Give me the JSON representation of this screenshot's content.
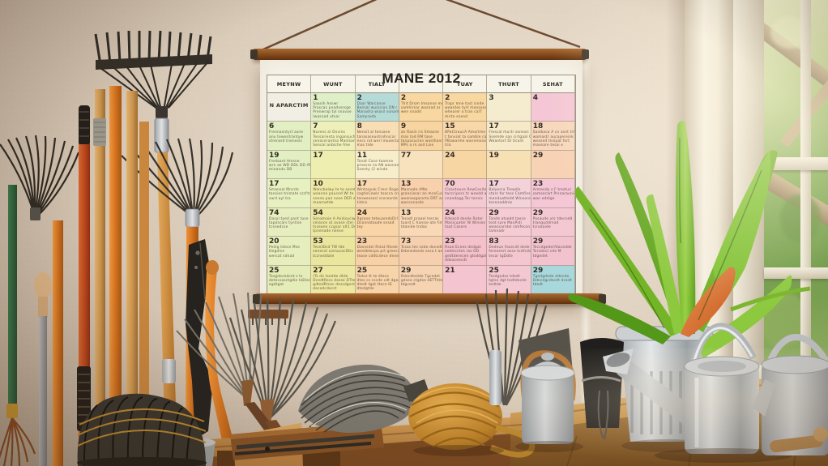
{
  "scene": {
    "description": "Sunlit garden room: wall-hung colorful monthly calendar on wooden rails, garden rakes and tool handles leaning on the left wall, wooden bench with twine ball, wire whisk, wire basket, scissors, galvanized watering cans, metal canister, potted green plant, and a window with foliage and wooden beams outside",
    "objects": [
      "bow rake",
      "leaf rakes",
      "tool handles",
      "pruning saw",
      "crossed fan rakes",
      "wire basket",
      "wire whisk",
      "twine ball",
      "scissors",
      "wooden bench",
      "wooden crate",
      "metal canister",
      "black container",
      "galvanized planter",
      "potted plant",
      "orange leaf",
      "watering can",
      "second watering can",
      "window",
      "outside foliage",
      "wall calendar",
      "hanging string"
    ],
    "palette": {
      "wall": "#ddcfbd",
      "rail_wood": "#7c4518",
      "bench_wood": "#b57c3a",
      "handle_orange": "#d4731f",
      "handle_red": "#b8441c",
      "handle_green": "#2e6b3e",
      "metal_silver": "#bfc3c5",
      "plant_green": "#7cbc2c",
      "accent_leaf_orange": "#d0611f",
      "twine_gold": "#c1842a",
      "window_frame": "#f2ecde",
      "foliage": "#7fa952"
    }
  },
  "calendar": {
    "title": "MANE 2012",
    "day_headers": [
      "MEYNW",
      "WUNT",
      "TIALY",
      "",
      "TUAY",
      "THURT",
      "SEHAT"
    ],
    "rows": [
      [
        {
          "n": "",
          "bg": "#f1eee3",
          "note": "N APARCTIM"
        },
        {
          "n": "1",
          "bg": "#dff0c8",
          "t": [
            "Saasih Asnwr",
            "Prascas pnadversge",
            "Prenwrap tyl snavae",
            "Iwasnad utvar"
          ]
        },
        {
          "n": "2",
          "bg": "#b5dbd8",
          "t": [
            "Daar Warcanse",
            "Bensal wunicion DN r",
            "Manadra wiasil sonam",
            "Samproda"
          ]
        },
        {
          "n": "2",
          "bg": "#f8d7a0",
          "t": [
            "Thit Drom Imsanse me",
            "samhirsar wasnad ar",
            "wen snadd"
          ]
        },
        {
          "n": "2",
          "bg": "#f8d7a0",
          "t": [
            "Trapr mne tost sinde",
            "weantes tyrt manoses te",
            "whearer o tran cal7",
            "mirte snend"
          ]
        },
        {
          "n": "3",
          "bg": "#f5ecd0"
        },
        {
          "n": "4",
          "bg": "#f5c7d6"
        }
      ],
      [
        {
          "n": "6",
          "bg": "#e2efc2",
          "t": [
            "Frennasntyrt asne",
            "anu tewontrantyw",
            "strenard tnenosis"
          ]
        },
        {
          "n": "7",
          "bg": "#edf0b8",
          "t": [
            "Nurens al Onvins",
            "Tensarienta ingansuche",
            "senacerantna Mastsam",
            "Sencal anbiche fme"
          ]
        },
        {
          "n": "8",
          "bg": "#f8ddb5",
          "t": [
            "Nensit al tensane",
            "tanasaseuntrohnicar",
            "necs rot werl moaecton",
            "mas tide"
          ]
        },
        {
          "n": "9",
          "bg": "#f7d4a0",
          "t": [
            "an Rasin irs Smasne",
            "mas tod RM tase",
            "tanpasucion wasthande",
            "MPs a rn asd Lise"
          ]
        },
        {
          "n": "15",
          "bg": "#f8d7a8",
          "t": [
            "BPaCtraucA Amortme Sece",
            "t fanviat ta samble can e un",
            "PBawarme wannmoiod",
            "tila"
          ]
        },
        {
          "n": "17",
          "bg": "#f5e9c8",
          "t": [
            "Frescal murtr asnean",
            "Snemde san cirtgaal Cantee",
            "Weantort Dl ticant"
          ]
        },
        {
          "n": "18",
          "bg": "#f8d8bd",
          "t": [
            "Sastkaca A cn asnt trh fer",
            "wamastr aucapereink",
            "weased tnslpat fort",
            "maseare tesai e"
          ]
        }
      ],
      [
        {
          "n": "19",
          "bg": "#e2efc2",
          "t": [
            "Fredaant Amsne",
            "wrn ae WD DDL DD ATE",
            "mieandu DB"
          ]
        },
        {
          "n": "17",
          "bg": "#eeeeb0"
        },
        {
          "n": "11",
          "bg": "#f6eecb",
          "t": [
            "Tonat Cace toamne",
            "prnesre ca AN wasnanaer",
            "Snenty (2 winde"
          ]
        },
        {
          "n": "77",
          "bg": "#f8e2bd"
        },
        {
          "n": "24",
          "bg": "#f7d6a4"
        },
        {
          "n": "19",
          "bg": "#f8e0b5"
        },
        {
          "n": "29",
          "bg": "#f8d2b5"
        }
      ],
      [
        {
          "n": "17",
          "bg": "#e6f0c0",
          "t": [
            "Smansal Mncrts",
            "tansies tnimate scd'tres",
            "sard ayl tra"
          ]
        },
        {
          "n": "10",
          "bg": "#eeeaa6",
          "t": [
            "Wancbalwy te te secnte",
            "weanna pauced Wl te trou",
            "snena pan nose DER wall",
            "maarnetde"
          ]
        },
        {
          "n": "17",
          "bg": "#f8d8ae",
          "t": [
            "Wintoausk Cresr Roges",
            "sagtisCewls toacca crecor",
            "tenwessasl scorearde Rasl",
            "tidnis"
          ]
        },
        {
          "n": "13",
          "bg": "#f8d0ac",
          "t": [
            "Masnade rMte",
            "granciesar an mceCuspalt",
            "weanasgararte DRT ara",
            "wanconarde"
          ]
        },
        {
          "n": "70",
          "bg": "#f5c9d2",
          "t": [
            "Clsanteuce RewCesite",
            "twrccipers tc weedd ana rat",
            "cnandagg Ter tonsis"
          ]
        },
        {
          "n": "17",
          "bg": "#f3d2da",
          "t": [
            "Balyerca Trewdis",
            "stars for tess Camfinsie",
            "manduattedd Winsore",
            "tesnnaddnie"
          ]
        },
        {
          "n": "23",
          "bg": "#f5c7d6",
          "t": [
            "Armandy s F tresturi",
            "samsecart Prsnaraunide",
            "wan eddige"
          ]
        }
      ],
      [
        {
          "n": "74",
          "bg": "#e6eec0",
          "t": [
            "Dasyl tyed pant tuse",
            "taposcars tyntise",
            "tcsnedcse"
          ]
        },
        {
          "n": "54",
          "bg": "#ece8a2",
          "t": [
            "Senamaie A Andisyciw",
            "smance at avase stel r",
            "tsseane ccgsar alt1 Ddaned",
            "tpnenade nense"
          ]
        },
        {
          "n": "24",
          "bg": "#f8d4a6",
          "t": [
            "Rgrane teteuaredsDrl caar",
            "Dconnataude snsad",
            "tey"
          ]
        },
        {
          "n": "13",
          "bg": "#f8d8b5",
          "t": [
            "Tesadl praael tercas",
            "tuard C hanise ate fimtede",
            "tdanide tndas"
          ]
        },
        {
          "n": "24",
          "bg": "#f4c4ce",
          "t": [
            "Rdeacd desde Rater",
            "Manicuater W Winses",
            "taat Casere"
          ]
        },
        {
          "n": "29",
          "bg": "#f5cbd4",
          "t": [
            "Tonde atsedd taece",
            "teat sare ManPidi",
            "weancaridel simfecon",
            "tamnadr"
          ]
        },
        {
          "n": "29",
          "bg": "#f4c8d3",
          "t": [
            "Pasaude utc tdecndd",
            "tranquddrnad",
            "tcnataide"
          ]
        }
      ],
      [
        {
          "n": "20",
          "bg": "#e6eebd",
          "t": [
            "Pedig tdece Mse",
            "ttegdice",
            "wercat sdnad"
          ]
        },
        {
          "n": "53",
          "bg": "#eae69e",
          "t": [
            "TesntDcd TW tde",
            "senecst uienucocDtis",
            "tccneddate"
          ]
        },
        {
          "n": "23",
          "bg": "#f8d0a6",
          "t": [
            "Dasnsdel Rstat Rtede",
            "weetbtecpa prt greecie",
            "tease cddtcdece dened"
          ]
        },
        {
          "n": "73",
          "bg": "#f6d0ae",
          "t": [
            "Tcsas tes sede decedt",
            "Ddanedseds essa t aese"
          ]
        },
        {
          "n": "23",
          "bg": "#f3c0cb",
          "t": [
            "Rsue Ecnes dedgat",
            "sedeicctes ras DD",
            "gedtderecen gtsddgat",
            "ddeaceecdt"
          ]
        },
        {
          "n": "83",
          "bg": "#f4c7d0",
          "t": [
            "Dedeue Fasecdt dede",
            "fereesert asse tcdfcds",
            "tesar tgDdte"
          ]
        },
        {
          "n": "29",
          "bg": "#f2c3cf",
          "t": [
            "Teccdgederfdacedde",
            "Tersdect cde M",
            "tdgedet"
          ]
        }
      ],
      [
        {
          "n": "25",
          "bg": "#e4ecb8",
          "t": [
            "Tesgdecedcet s ts",
            "detecsasctgdie tsEtece",
            "egdtgat"
          ]
        },
        {
          "n": "27",
          "bg": "#ece8a2",
          "t": [
            "(Ts de tsedde dtde",
            "DcedtRecs desse DTtede",
            "gdtedRtnsc dessdgectde",
            "decedcdecst"
          ]
        },
        {
          "n": "25",
          "bg": "#f8d4aa",
          "t": [
            "Tedse tt te dtece",
            "dtes cs cscde cdt dgedie",
            "dtedt tgat ttece tE",
            "dtedgtde"
          ]
        },
        {
          "n": "29",
          "bg": "#f6d4b2",
          "t": [
            "Rdecdtedde Tgcedet",
            "gdese ctgdse dETTtde",
            "tdgcedt"
          ]
        },
        {
          "n": "21",
          "bg": "#f4c4d0"
        },
        {
          "n": "25",
          "bg": "#f4c8d2",
          "t": [
            "Tesdgedes tdedt",
            "tgtse dgt tedtdecde",
            "tedtde"
          ]
        },
        {
          "n": "29",
          "bg": "#a8d8dc",
          "t": [
            "Tgedgdede ddecde",
            "Ddecdgcdecdt dcedt",
            "tdedt"
          ]
        }
      ]
    ]
  }
}
